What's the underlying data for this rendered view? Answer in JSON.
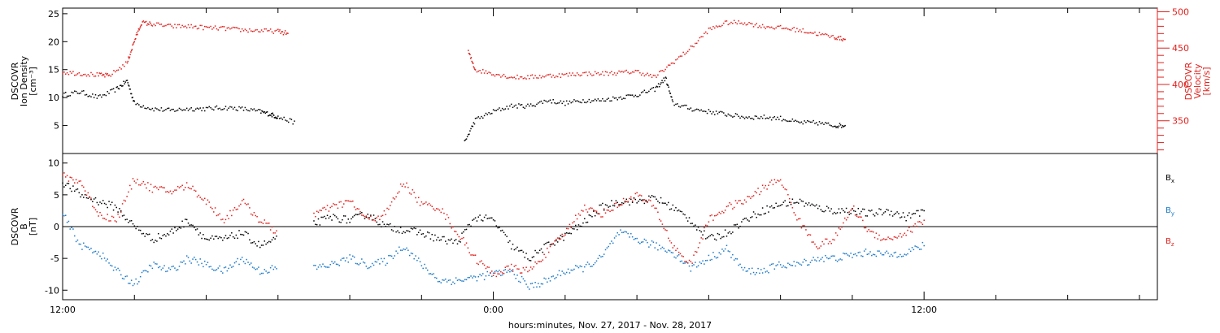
{
  "chart_data": [
    {
      "type": "scatter",
      "panel": "plasma",
      "ylabel_left": [
        "DSCOVR",
        "Ion Density",
        "[cm⁻³]"
      ],
      "ylabel_right": [
        "DSCOVR",
        "Velocity",
        "[km/s]"
      ],
      "ylim_left": [
        0,
        26
      ],
      "yticks_left": [
        5,
        10,
        15,
        20,
        25
      ],
      "ylim_right": [
        305,
        505
      ],
      "yticks_right": [
        350,
        400,
        450,
        500
      ],
      "grid": false,
      "series": [
        {
          "axis": "left",
          "color": "#000000",
          "x": [
            12.0,
            12.5,
            13.0,
            13.5,
            13.8,
            14.0,
            14.5,
            15.0,
            15.5,
            16.0,
            16.5,
            17.0,
            17.5,
            17.8,
            18.0,
            18.5,
            19.0,
            19.5,
            20.0,
            20.5,
            21.0,
            21.5,
            22.0,
            22.5,
            23.0,
            23.2,
            23.5,
            24.0,
            24.5,
            25.0,
            25.5,
            26.0,
            26.5,
            27.0,
            27.5,
            28.0,
            28.5,
            28.8,
            29.0,
            29.5,
            30.0,
            30.5,
            31.0,
            31.5,
            32.0,
            32.5,
            33.0,
            33.5,
            33.8
          ],
          "y": [
            10.5,
            11.0,
            10.0,
            11.5,
            13.0,
            9.0,
            8.0,
            7.7,
            8.0,
            8.0,
            8.2,
            8.0,
            7.5,
            7.0,
            6.5,
            5.5,
            null,
            null,
            null,
            null,
            null,
            null,
            null,
            null,
            null,
            2.0,
            6.0,
            7.5,
            8.5,
            8.5,
            9.5,
            9.0,
            9.5,
            9.5,
            10.0,
            10.5,
            11.5,
            13.5,
            9.0,
            8.0,
            7.5,
            7.0,
            6.5,
            6.5,
            6.3,
            5.5,
            5.5,
            5.0,
            5.0
          ]
        },
        {
          "axis": "right",
          "color": "#e0201c",
          "x": [
            12.0,
            12.5,
            13.0,
            13.3,
            13.8,
            14.0,
            14.2,
            14.5,
            15.0,
            15.5,
            16.0,
            16.5,
            17.0,
            17.5,
            18.0,
            18.3,
            18.5,
            19.0,
            19.5,
            20.0,
            20.5,
            21.0,
            21.5,
            22.0,
            22.5,
            23.0,
            23.3,
            23.5,
            24.0,
            24.5,
            25.0,
            25.5,
            26.0,
            26.5,
            27.0,
            27.5,
            28.0,
            28.5,
            29.0,
            29.5,
            30.0,
            30.5,
            31.0,
            31.5,
            32.0,
            32.5,
            33.0,
            33.5,
            33.8
          ],
          "y": [
            417,
            415,
            413,
            412,
            430,
            460,
            485,
            483,
            480,
            480,
            478,
            477,
            475,
            474,
            473,
            470,
            null,
            null,
            null,
            null,
            null,
            null,
            null,
            null,
            null,
            null,
            445,
            420,
            415,
            410,
            410,
            412,
            413,
            415,
            415,
            416,
            418,
            410,
            430,
            450,
            475,
            485,
            485,
            480,
            478,
            475,
            470,
            465,
            462
          ]
        }
      ]
    },
    {
      "type": "scatter",
      "panel": "magnetic",
      "ylabel": [
        "DSCOVR",
        "B",
        "[nT]"
      ],
      "ylim": [
        -11.5,
        11.5
      ],
      "yticks": [
        -10,
        -5,
        0,
        5,
        10
      ],
      "zero_line": true,
      "grid": false,
      "xlabel": "hours:minutes, Nov. 27, 2017 - Nov. 28, 2017",
      "xlim": [
        12.0,
        42.5
      ],
      "xticks": [
        12,
        24,
        36
      ],
      "xtick_labels": [
        "12:00",
        "0:00",
        "12:00"
      ],
      "minor_tick_step": 2,
      "legend_placement": "right",
      "series": [
        {
          "name": "B",
          "subscript": "x",
          "color": "#000000",
          "x": [
            12.0,
            12.5,
            13.0,
            13.5,
            14.0,
            14.5,
            15.0,
            15.5,
            16.0,
            16.5,
            17.0,
            17.5,
            18.0,
            18.5,
            19.0,
            19.5,
            20.0,
            20.5,
            21.0,
            21.5,
            22.0,
            22.5,
            23.0,
            23.5,
            24.0,
            24.5,
            25.0,
            25.5,
            26.0,
            26.5,
            27.0,
            27.5,
            28.0,
            28.5,
            29.0,
            29.5,
            30.0,
            30.5,
            31.0,
            31.5,
            32.0,
            32.5,
            33.0,
            33.5,
            34.0,
            34.5,
            35.0,
            35.5,
            36.0
          ],
          "y": [
            7.0,
            5.0,
            4.0,
            3.0,
            0.0,
            -2.0,
            -1.0,
            1.0,
            -2.0,
            -2.0,
            -1.0,
            -3.0,
            -2.0,
            null,
            0.5,
            1.5,
            1.0,
            2.0,
            0.0,
            -0.5,
            -1.0,
            -2.0,
            -2.5,
            1.5,
            1.0,
            -3.0,
            -5.0,
            -3.0,
            -1.5,
            0.5,
            3.0,
            4.0,
            4.0,
            4.5,
            3.0,
            1.0,
            -2.0,
            -1.0,
            1.0,
            2.5,
            3.5,
            4.0,
            3.0,
            2.5,
            2.5,
            2.0,
            2.5,
            1.5,
            2.5
          ]
        },
        {
          "name": "B",
          "subscript": "y",
          "color": "#1a78c8",
          "x": [
            12.0,
            12.5,
            13.0,
            13.5,
            14.0,
            14.5,
            15.0,
            15.5,
            16.0,
            16.5,
            17.0,
            17.5,
            18.0,
            18.5,
            19.0,
            19.5,
            20.0,
            20.5,
            21.0,
            21.5,
            22.0,
            22.5,
            23.0,
            23.5,
            24.0,
            24.5,
            25.0,
            25.5,
            26.0,
            26.5,
            27.0,
            27.5,
            28.0,
            28.5,
            29.0,
            29.5,
            30.0,
            30.5,
            31.0,
            31.5,
            32.0,
            32.5,
            33.0,
            33.5,
            34.0,
            34.5,
            35.0,
            35.5,
            36.0
          ],
          "y": [
            2.0,
            -3.0,
            -4.0,
            -7.0,
            -9.0,
            -6.0,
            -7.0,
            -5.0,
            -6.0,
            -7.0,
            -5.0,
            -7.0,
            -6.5,
            null,
            -6.5,
            -6.0,
            -5.0,
            -6.0,
            -5.5,
            -3.0,
            -6.0,
            -8.5,
            -8.5,
            -8.0,
            -7.5,
            -7.0,
            -9.5,
            -8.5,
            -7.0,
            -6.5,
            -5.0,
            -1.0,
            -2.0,
            -3.0,
            -4.0,
            -6.5,
            -5.0,
            -3.5,
            -7.0,
            -7.0,
            -6.0,
            -6.0,
            -5.0,
            -5.0,
            -4.5,
            -4.0,
            -4.5,
            -4.0,
            -3.0
          ]
        },
        {
          "name": "B",
          "subscript": "z",
          "color": "#e0201c",
          "x": [
            12.0,
            12.5,
            13.0,
            13.5,
            14.0,
            14.5,
            15.0,
            15.5,
            16.0,
            16.5,
            17.0,
            17.5,
            18.0,
            18.5,
            19.0,
            19.5,
            20.0,
            20.5,
            21.0,
            21.5,
            22.0,
            22.5,
            23.0,
            23.5,
            24.0,
            24.5,
            25.0,
            25.5,
            26.0,
            26.5,
            27.0,
            27.5,
            28.0,
            28.5,
            29.0,
            29.5,
            30.0,
            30.5,
            31.0,
            31.5,
            32.0,
            32.5,
            33.0,
            33.5,
            34.0,
            34.5,
            35.0,
            35.5,
            36.0
          ],
          "y": [
            8.0,
            7.0,
            2.0,
            1.0,
            7.5,
            6.0,
            5.5,
            6.5,
            4.0,
            1.0,
            4.0,
            1.0,
            -1.0,
            null,
            2.0,
            3.0,
            4.0,
            1.0,
            2.0,
            7.0,
            3.5,
            3.0,
            -1.0,
            -5.0,
            -7.5,
            -6.5,
            -7.0,
            -4.0,
            -1.0,
            3.0,
            2.0,
            3.5,
            5.0,
            3.0,
            -3.0,
            -6.0,
            1.0,
            3.0,
            4.0,
            6.0,
            7.5,
            1.0,
            -3.0,
            -2.0,
            3.0,
            -1.0,
            -2.0,
            -1.0,
            1.0
          ]
        }
      ]
    }
  ]
}
